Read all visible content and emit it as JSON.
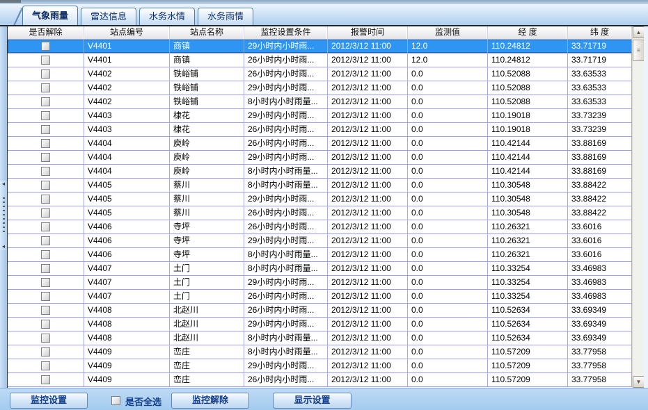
{
  "tabs": [
    {
      "label": "气象雨量",
      "active": true
    },
    {
      "label": "雷达信息",
      "active": false
    },
    {
      "label": "水务水情",
      "active": false
    },
    {
      "label": "水务雨情",
      "active": false
    }
  ],
  "table": {
    "columns": [
      "是否解除",
      "站点编号",
      "站点名称",
      "监控设置条件",
      "报警时间",
      "监测值",
      "经 度",
      "纬 度"
    ],
    "rows": [
      {
        "checked": false,
        "code": "V4401",
        "name": "商镇",
        "condition": "29小时内小时雨...",
        "time": "2012/3/12 11:00",
        "value": "12.0",
        "lon": "110.24812",
        "lat": "33.71719",
        "selected": true
      },
      {
        "checked": false,
        "code": "V4401",
        "name": "商镇",
        "condition": "26小时内小时雨...",
        "time": "2012/3/12 11:00",
        "value": "12.0",
        "lon": "110.24812",
        "lat": "33.71719",
        "selected": false
      },
      {
        "checked": false,
        "code": "V4402",
        "name": "铁峪铺",
        "condition": "26小时内小时雨...",
        "time": "2012/3/12 11:00",
        "value": "0.0",
        "lon": "110.52088",
        "lat": "33.63533",
        "selected": false
      },
      {
        "checked": false,
        "code": "V4402",
        "name": "铁峪铺",
        "condition": "29小时内小时雨...",
        "time": "2012/3/12 11:00",
        "value": "0.0",
        "lon": "110.52088",
        "lat": "33.63533",
        "selected": false
      },
      {
        "checked": false,
        "code": "V4402",
        "name": "铁峪铺",
        "condition": "8小时内小时雨量...",
        "time": "2012/3/12 11:00",
        "value": "0.0",
        "lon": "110.52088",
        "lat": "33.63533",
        "selected": false
      },
      {
        "checked": false,
        "code": "V4403",
        "name": "棣花",
        "condition": "29小时内小时雨...",
        "time": "2012/3/12 11:00",
        "value": "0.0",
        "lon": "110.19018",
        "lat": "33.73239",
        "selected": false
      },
      {
        "checked": false,
        "code": "V4403",
        "name": "棣花",
        "condition": "26小时内小时雨...",
        "time": "2012/3/12 11:00",
        "value": "0.0",
        "lon": "110.19018",
        "lat": "33.73239",
        "selected": false
      },
      {
        "checked": false,
        "code": "V4404",
        "name": "庾岭",
        "condition": "26小时内小时雨...",
        "time": "2012/3/12 11:00",
        "value": "0.0",
        "lon": "110.42144",
        "lat": "33.88169",
        "selected": false
      },
      {
        "checked": false,
        "code": "V4404",
        "name": "庾岭",
        "condition": "29小时内小时雨...",
        "time": "2012/3/12 11:00",
        "value": "0.0",
        "lon": "110.42144",
        "lat": "33.88169",
        "selected": false
      },
      {
        "checked": false,
        "code": "V4404",
        "name": "庾岭",
        "condition": "8小时内小时雨量...",
        "time": "2012/3/12 11:00",
        "value": "0.0",
        "lon": "110.42144",
        "lat": "33.88169",
        "selected": false
      },
      {
        "checked": false,
        "code": "V4405",
        "name": "蔡川",
        "condition": "8小时内小时雨量...",
        "time": "2012/3/12 11:00",
        "value": "0.0",
        "lon": "110.30548",
        "lat": "33.88422",
        "selected": false
      },
      {
        "checked": false,
        "code": "V4405",
        "name": "蔡川",
        "condition": "29小时内小时雨...",
        "time": "2012/3/12 11:00",
        "value": "0.0",
        "lon": "110.30548",
        "lat": "33.88422",
        "selected": false
      },
      {
        "checked": false,
        "code": "V4405",
        "name": "蔡川",
        "condition": "26小时内小时雨...",
        "time": "2012/3/12 11:00",
        "value": "0.0",
        "lon": "110.30548",
        "lat": "33.88422",
        "selected": false
      },
      {
        "checked": false,
        "code": "V4406",
        "name": "寺坪",
        "condition": "26小时内小时雨...",
        "time": "2012/3/12 11:00",
        "value": "0.0",
        "lon": "110.26321",
        "lat": "33.6016",
        "selected": false
      },
      {
        "checked": false,
        "code": "V4406",
        "name": "寺坪",
        "condition": "29小时内小时雨...",
        "time": "2012/3/12 11:00",
        "value": "0.0",
        "lon": "110.26321",
        "lat": "33.6016",
        "selected": false
      },
      {
        "checked": false,
        "code": "V4406",
        "name": "寺坪",
        "condition": "8小时内小时雨量...",
        "time": "2012/3/12 11:00",
        "value": "0.0",
        "lon": "110.26321",
        "lat": "33.6016",
        "selected": false
      },
      {
        "checked": false,
        "code": "V4407",
        "name": "土门",
        "condition": "8小时内小时雨量...",
        "time": "2012/3/12 11:00",
        "value": "0.0",
        "lon": "110.33254",
        "lat": "33.46983",
        "selected": false
      },
      {
        "checked": false,
        "code": "V4407",
        "name": "土门",
        "condition": "29小时内小时雨...",
        "time": "2012/3/12 11:00",
        "value": "0.0",
        "lon": "110.33254",
        "lat": "33.46983",
        "selected": false
      },
      {
        "checked": false,
        "code": "V4407",
        "name": "土门",
        "condition": "26小时内小时雨...",
        "time": "2012/3/12 11:00",
        "value": "0.0",
        "lon": "110.33254",
        "lat": "33.46983",
        "selected": false
      },
      {
        "checked": false,
        "code": "V4408",
        "name": "北赵川",
        "condition": "26小时内小时雨...",
        "time": "2012/3/12 11:00",
        "value": "0.0",
        "lon": "110.52634",
        "lat": "33.69349",
        "selected": false
      },
      {
        "checked": false,
        "code": "V4408",
        "name": "北赵川",
        "condition": "29小时内小时雨...",
        "time": "2012/3/12 11:00",
        "value": "0.0",
        "lon": "110.52634",
        "lat": "33.69349",
        "selected": false
      },
      {
        "checked": false,
        "code": "V4408",
        "name": "北赵川",
        "condition": "8小时内小时雨量...",
        "time": "2012/3/12 11:00",
        "value": "0.0",
        "lon": "110.52634",
        "lat": "33.69349",
        "selected": false
      },
      {
        "checked": false,
        "code": "V4409",
        "name": "峦庄",
        "condition": "8小时内小时雨量...",
        "time": "2012/3/12 11:00",
        "value": "0.0",
        "lon": "110.57209",
        "lat": "33.77958",
        "selected": false
      },
      {
        "checked": false,
        "code": "V4409",
        "name": "峦庄",
        "condition": "29小时内小时雨...",
        "time": "2012/3/12 11:00",
        "value": "0.0",
        "lon": "110.57209",
        "lat": "33.77958",
        "selected": false
      },
      {
        "checked": false,
        "code": "V4409",
        "name": "峦庄",
        "condition": "26小时内小时雨...",
        "time": "2012/3/12 11:00",
        "value": "0.0",
        "lon": "110.57209",
        "lat": "33.77958",
        "selected": false
      }
    ]
  },
  "scrollbar": {
    "up_arrow": "▲",
    "down_arrow": "▼",
    "thumb_grip": "≡"
  },
  "splitter": {
    "collapse_arrow": "◂"
  },
  "footer": {
    "monitor_set_label": "监控设置",
    "select_all_label": "是否全选",
    "select_all_checked": false,
    "monitor_release_label": "监控解除",
    "display_set_label": "显示设置"
  },
  "colors": {
    "selected_row": "#2e95f2",
    "grid_line": "#9f9fe8",
    "footer_text": "#123c8c",
    "tab_text": "#0f2d66"
  }
}
